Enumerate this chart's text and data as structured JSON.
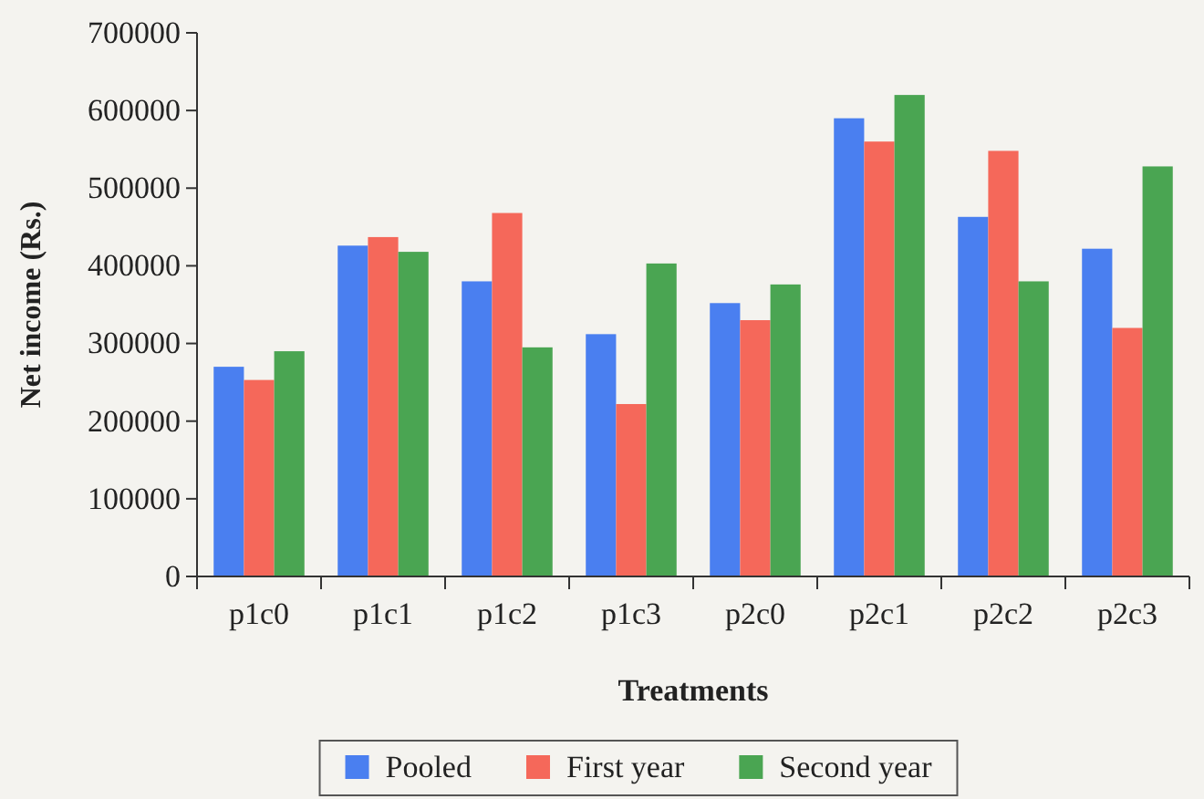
{
  "chart_data": {
    "type": "bar",
    "xlabel": "Treatments",
    "ylabel": "Net income (Rs.)",
    "categories": [
      "p1c0",
      "p1c1",
      "p1c2",
      "p1c3",
      "p2c0",
      "p2c1",
      "p2c2",
      "p2c3"
    ],
    "series": [
      {
        "name": "Pooled",
        "color": "#4a7ff0",
        "values": [
          270000,
          426000,
          380000,
          312000,
          352000,
          590000,
          463000,
          422000
        ]
      },
      {
        "name": "First year",
        "color": "#f5685a",
        "values": [
          253000,
          437000,
          468000,
          222000,
          330000,
          560000,
          548000,
          320000
        ]
      },
      {
        "name": "Second year",
        "color": "#4aa552",
        "values": [
          290000,
          418000,
          295000,
          403000,
          376000,
          620000,
          380000,
          528000
        ]
      }
    ],
    "ylim": [
      0,
      700000
    ],
    "yticks": [
      0,
      100000,
      200000,
      300000,
      400000,
      500000,
      600000,
      700000
    ],
    "grid": false,
    "legend": "bottom"
  }
}
